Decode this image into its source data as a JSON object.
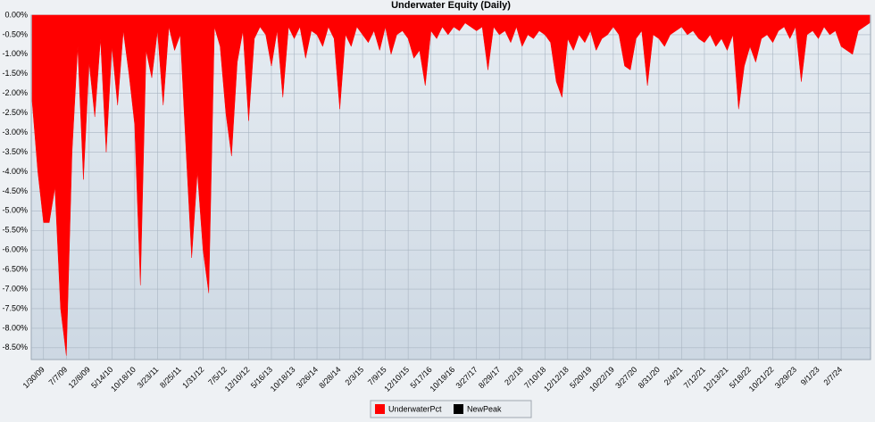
{
  "chart_data": {
    "type": "area",
    "title": "Underwater Equity (Daily)",
    "categories": [
      null,
      null,
      "1/30/09",
      null,
      null,
      null,
      "7/7/09",
      null,
      null,
      null,
      "12/8/09",
      null,
      null,
      null,
      "5/14/10",
      null,
      null,
      null,
      "10/18/10",
      null,
      null,
      null,
      "3/23/11",
      null,
      null,
      null,
      "8/25/11",
      null,
      null,
      null,
      "1/31/12",
      null,
      null,
      null,
      "7/5/12",
      null,
      null,
      null,
      "12/10/12",
      null,
      null,
      null,
      "5/16/13",
      null,
      null,
      null,
      "10/18/13",
      null,
      null,
      null,
      "3/26/14",
      null,
      null,
      null,
      "8/28/14",
      null,
      null,
      null,
      "2/3/15",
      null,
      null,
      null,
      "7/9/15",
      null,
      null,
      null,
      "12/10/15",
      null,
      null,
      null,
      "5/17/16",
      null,
      null,
      null,
      "10/19/16",
      null,
      null,
      null,
      "3/27/17",
      null,
      null,
      null,
      "8/29/17",
      null,
      null,
      null,
      "2/2/18",
      null,
      null,
      null,
      "7/10/18",
      null,
      null,
      null,
      "12/12/18",
      null,
      null,
      null,
      "5/20/19",
      null,
      null,
      null,
      "10/22/19",
      null,
      null,
      null,
      "3/27/20",
      null,
      null,
      null,
      "8/31/20",
      null,
      null,
      null,
      "2/4/21",
      null,
      null,
      null,
      "7/12/21",
      null,
      null,
      null,
      "12/13/21",
      null,
      null,
      null,
      "5/18/22",
      null,
      null,
      null,
      "10/21/22",
      null,
      null,
      null,
      "3/29/23",
      null,
      null,
      null,
      "9/1/23",
      null,
      null,
      null,
      "2/7/24",
      null,
      null,
      null,
      null,
      null
    ],
    "series": [
      {
        "name": "UnderwaterPct",
        "color": "#ff0000",
        "values": [
          -2.2,
          -4.0,
          -5.3,
          -5.3,
          -4.4,
          -7.5,
          -8.7,
          -3.5,
          -0.8,
          -4.2,
          -1.2,
          -2.6,
          -0.6,
          -3.5,
          -0.8,
          -2.3,
          -0.4,
          -1.5,
          -2.8,
          -6.9,
          -0.9,
          -1.6,
          -0.4,
          -2.3,
          -0.3,
          -0.9,
          -0.5,
          -3.4,
          -6.2,
          -4.0,
          -6.0,
          -7.1,
          -0.3,
          -0.8,
          -2.5,
          -3.6,
          -1.2,
          -0.4,
          -2.7,
          -0.6,
          -0.3,
          -0.5,
          -1.3,
          -0.4,
          -2.1,
          -0.3,
          -0.6,
          -0.3,
          -1.1,
          -0.4,
          -0.5,
          -0.8,
          -0.3,
          -0.6,
          -2.4,
          -0.5,
          -0.8,
          -0.3,
          -0.5,
          -0.7,
          -0.4,
          -0.9,
          -0.3,
          -1.0,
          -0.5,
          -0.4,
          -0.6,
          -1.1,
          -0.9,
          -1.8,
          -0.4,
          -0.6,
          -0.3,
          -0.5,
          -0.3,
          -0.4,
          -0.2,
          -0.3,
          -0.4,
          -0.3,
          -1.4,
          -0.3,
          -0.5,
          -0.4,
          -0.7,
          -0.3,
          -0.8,
          -0.5,
          -0.6,
          -0.4,
          -0.5,
          -0.7,
          -1.7,
          -2.1,
          -0.6,
          -0.9,
          -0.5,
          -0.7,
          -0.4,
          -0.9,
          -0.6,
          -0.5,
          -0.3,
          -0.5,
          -1.3,
          -1.4,
          -0.6,
          -0.4,
          -1.8,
          -0.5,
          -0.6,
          -0.8,
          -0.5,
          -0.4,
          -0.3,
          -0.5,
          -0.4,
          -0.6,
          -0.7,
          -0.5,
          -0.8,
          -0.6,
          -0.9,
          -0.5,
          -2.4,
          -1.3,
          -0.8,
          -1.2,
          -0.6,
          -0.5,
          -0.7,
          -0.4,
          -0.3,
          -0.6,
          -0.3,
          -1.7,
          -0.5,
          -0.4,
          -0.6,
          -0.3,
          -0.5,
          -0.4,
          -0.8,
          -0.9,
          -1.0,
          -0.4,
          -0.3,
          -0.2
        ]
      },
      {
        "name": "NewPeak",
        "color": "#000000",
        "values": [
          null,
          null,
          null,
          null,
          null,
          null,
          null,
          null,
          null,
          null,
          null,
          null,
          null,
          null,
          null,
          null,
          null,
          null,
          null,
          null,
          null,
          null,
          null,
          null,
          null,
          null,
          null,
          null,
          null,
          null,
          null,
          null,
          null,
          null,
          null,
          null,
          null,
          null,
          null,
          null,
          null,
          null,
          null,
          null,
          null,
          null,
          null,
          null,
          null,
          null,
          null,
          null,
          null,
          null,
          null,
          null,
          null,
          null,
          null,
          null,
          null,
          null,
          null,
          null,
          null,
          null,
          null,
          null,
          null,
          null,
          null,
          null,
          null,
          null,
          null,
          null,
          null,
          null,
          null,
          null,
          null,
          null,
          null,
          null,
          null,
          null,
          null,
          null,
          null,
          null,
          null,
          null,
          null,
          null,
          null,
          null,
          null,
          null,
          null,
          null,
          null,
          null,
          null,
          null,
          null,
          null,
          null,
          null,
          null,
          null,
          null,
          null,
          null,
          null,
          null,
          null,
          null,
          null,
          null,
          null,
          null,
          null,
          null,
          null,
          null,
          null,
          null,
          null,
          null,
          null,
          null,
          null,
          null,
          null,
          null,
          null,
          null,
          null,
          null,
          null,
          null,
          null,
          null,
          null,
          null,
          null,
          null,
          null
        ]
      }
    ],
    "ylim": [
      -8.8,
      0
    ],
    "yticks": [
      {
        "value": 0,
        "label": "0.00%"
      },
      {
        "value": -0.5,
        "label": "-0.50%"
      },
      {
        "value": -1,
        "label": "-1.00%"
      },
      {
        "value": -1.5,
        "label": "-1.50%"
      },
      {
        "value": -2,
        "label": "-2.00%"
      },
      {
        "value": -2.5,
        "label": "-2.50%"
      },
      {
        "value": -3,
        "label": "-3.00%"
      },
      {
        "value": -3.5,
        "label": "-3.50%"
      },
      {
        "value": -4,
        "label": "-4.00%"
      },
      {
        "value": -4.5,
        "label": "-4.50%"
      },
      {
        "value": -5,
        "label": "-5.00%"
      },
      {
        "value": -5.5,
        "label": "-5.50%"
      },
      {
        "value": -6,
        "label": "-6.00%"
      },
      {
        "value": -6.5,
        "label": "-6.50%"
      },
      {
        "value": -7,
        "label": "-7.00%"
      },
      {
        "value": -7.5,
        "label": "-7.50%"
      },
      {
        "value": -8,
        "label": "-8.00%"
      },
      {
        "value": -8.5,
        "label": "-8.50%"
      }
    ],
    "grid": true,
    "legend": "bottom"
  }
}
